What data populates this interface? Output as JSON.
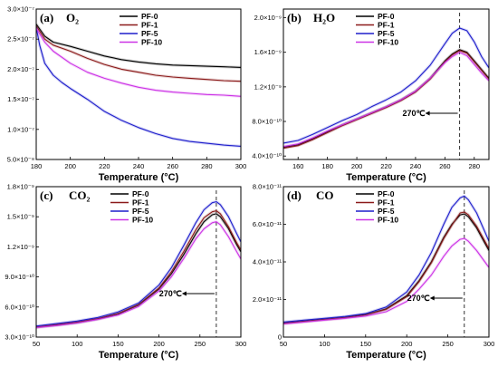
{
  "figure": {
    "colors": {
      "PF-0": "#000000",
      "PF-1": "#8b1a1a",
      "PF-5": "#1f1fcc",
      "PF-10": "#cc33e6"
    }
  },
  "chart_data": [
    {
      "type": "line",
      "panel_label": "(a)",
      "title": "O₂",
      "xlabel": "Temperature (°C)",
      "ylabel": "",
      "xlim": [
        180,
        300
      ],
      "ylim": [
        5e-08,
        3e-07
      ],
      "xticks": [
        180,
        200,
        220,
        240,
        260,
        280,
        300
      ],
      "yticks": [
        5e-08,
        1e-07,
        1.5e-07,
        2e-07,
        2.5e-07,
        3e-07
      ],
      "ytick_labels": [
        "5.0×10⁻⁸",
        "1.0×10⁻⁷",
        "1.5×10⁻⁷",
        "2.0×10⁻⁷",
        "2.5×10⁻⁷",
        "3.0×10⁻⁷"
      ],
      "legend": "top-right",
      "series": [
        {
          "name": "PF-0",
          "x": [
            180,
            185,
            190,
            200,
            210,
            220,
            230,
            240,
            250,
            260,
            270,
            280,
            290,
            300
          ],
          "y": [
            2.75e-07,
            2.55e-07,
            2.45e-07,
            2.38e-07,
            2.3e-07,
            2.22e-07,
            2.16e-07,
            2.12e-07,
            2.09e-07,
            2.07e-07,
            2.06e-07,
            2.05e-07,
            2.04e-07,
            2.03e-07
          ]
        },
        {
          "name": "PF-1",
          "x": [
            180,
            185,
            190,
            200,
            210,
            220,
            230,
            240,
            250,
            260,
            270,
            280,
            290,
            300
          ],
          "y": [
            2.72e-07,
            2.5e-07,
            2.4e-07,
            2.3e-07,
            2.18e-07,
            2.08e-07,
            2e-07,
            1.95e-07,
            1.9e-07,
            1.87e-07,
            1.85e-07,
            1.83e-07,
            1.81e-07,
            1.8e-07
          ]
        },
        {
          "name": "PF-5",
          "x": [
            180,
            182,
            185,
            190,
            195,
            200,
            210,
            220,
            230,
            240,
            250,
            260,
            270,
            280,
            290,
            300
          ],
          "y": [
            2.7e-07,
            2.4e-07,
            2.1e-07,
            1.9e-07,
            1.78e-07,
            1.68e-07,
            1.5e-07,
            1.3e-07,
            1.15e-07,
            1.03e-07,
            9.3e-08,
            8.5e-08,
            8e-08,
            7.7e-08,
            7.4e-08,
            7.2e-08
          ]
        },
        {
          "name": "PF-10",
          "x": [
            180,
            185,
            190,
            200,
            210,
            220,
            230,
            240,
            250,
            260,
            270,
            280,
            290,
            300
          ],
          "y": [
            2.68e-07,
            2.45e-07,
            2.3e-07,
            2.1e-07,
            1.95e-07,
            1.85e-07,
            1.77e-07,
            1.7e-07,
            1.65e-07,
            1.62e-07,
            1.6e-07,
            1.58e-07,
            1.57e-07,
            1.55e-07
          ]
        }
      ]
    },
    {
      "type": "line",
      "panel_label": "(b)",
      "title": "H₂O",
      "xlabel": "Temperature (°C)",
      "ylabel": "",
      "xlim": [
        150,
        290
      ],
      "ylim": [
        3.6e-10,
        2.1e-09
      ],
      "xticks": [
        160,
        180,
        200,
        220,
        240,
        260,
        280
      ],
      "yticks": [
        4e-10,
        8e-10,
        1.2e-09,
        1.6e-09,
        2e-09
      ],
      "ytick_labels": [
        "4.0×10⁻¹⁰",
        "8.0×10⁻¹⁰",
        "1.2×10⁻⁹",
        "1.6×10⁻⁹",
        "2.0×10⁻⁹"
      ],
      "legend": "top-left",
      "annotation": {
        "text": "270℃",
        "x": 270
      },
      "series": [
        {
          "name": "PF-0",
          "x": [
            150,
            160,
            170,
            180,
            190,
            200,
            210,
            220,
            230,
            240,
            250,
            260,
            265,
            270,
            275,
            280,
            285,
            290
          ],
          "y": [
            5e-10,
            5.3e-10,
            6e-10,
            6.8e-10,
            7.6e-10,
            8.3e-10,
            9e-10,
            9.7e-10,
            1.05e-09,
            1.15e-09,
            1.3e-09,
            1.5e-09,
            1.58e-09,
            1.63e-09,
            1.6e-09,
            1.5e-09,
            1.4e-09,
            1.3e-09
          ]
        },
        {
          "name": "PF-1",
          "x": [
            150,
            160,
            170,
            180,
            190,
            200,
            210,
            220,
            230,
            240,
            250,
            260,
            265,
            270,
            275,
            280,
            285,
            290
          ],
          "y": [
            4.9e-10,
            5.2e-10,
            5.9e-10,
            6.7e-10,
            7.5e-10,
            8.2e-10,
            8.9e-10,
            9.6e-10,
            1.04e-09,
            1.14e-09,
            1.29e-09,
            1.49e-09,
            1.57e-09,
            1.62e-09,
            1.59e-09,
            1.49e-09,
            1.39e-09,
            1.29e-09
          ]
        },
        {
          "name": "PF-5",
          "x": [
            150,
            160,
            170,
            180,
            190,
            200,
            210,
            220,
            230,
            240,
            250,
            260,
            265,
            270,
            275,
            280,
            285,
            290
          ],
          "y": [
            5.5e-10,
            5.8e-10,
            6.5e-10,
            7.3e-10,
            8.1e-10,
            8.8e-10,
            9.7e-10,
            1.05e-09,
            1.14e-09,
            1.27e-09,
            1.45e-09,
            1.7e-09,
            1.82e-09,
            1.88e-09,
            1.85e-09,
            1.72e-09,
            1.55e-09,
            1.42e-09
          ]
        },
        {
          "name": "PF-10",
          "x": [
            150,
            160,
            170,
            180,
            190,
            200,
            210,
            220,
            230,
            240,
            250,
            260,
            265,
            270,
            275,
            280,
            285,
            290
          ],
          "y": [
            5.1e-10,
            5.4e-10,
            6.1e-10,
            6.9e-10,
            7.6e-10,
            8.3e-10,
            9e-10,
            9.7e-10,
            1.05e-09,
            1.15e-09,
            1.3e-09,
            1.48e-09,
            1.55e-09,
            1.6e-09,
            1.56e-09,
            1.46e-09,
            1.36e-09,
            1.27e-09
          ]
        }
      ]
    },
    {
      "type": "line",
      "panel_label": "(c)",
      "title": "CO₂",
      "xlabel": "Temperature (°C)",
      "ylabel": "",
      "xlim": [
        50,
        300
      ],
      "ylim": [
        3e-10,
        1.8e-09
      ],
      "xticks": [
        50,
        100,
        150,
        200,
        250,
        300
      ],
      "yticks": [
        3e-10,
        6e-10,
        9e-10,
        1.2e-09,
        1.5e-09,
        1.8e-09
      ],
      "ytick_labels": [
        "3.0×10⁻¹⁰",
        "6.0×10⁻¹⁰",
        "9.0×10⁻¹⁰",
        "1.2×10⁻⁹",
        "1.5×10⁻⁹",
        "1.8×10⁻⁹"
      ],
      "legend": "top-left",
      "annotation": {
        "text": "270℃",
        "x": 270
      },
      "series": [
        {
          "name": "PF-0",
          "x": [
            50,
            75,
            100,
            125,
            150,
            175,
            200,
            215,
            230,
            245,
            255,
            265,
            270,
            275,
            285,
            295,
            300
          ],
          "y": [
            4e-10,
            4.2e-10,
            4.45e-10,
            4.8e-10,
            5.3e-10,
            6.2e-10,
            7.8e-10,
            9.3e-10,
            1.12e-09,
            1.33e-09,
            1.45e-09,
            1.52e-09,
            1.53e-09,
            1.5e-09,
            1.38e-09,
            1.22e-09,
            1.15e-09
          ]
        },
        {
          "name": "PF-1",
          "x": [
            50,
            75,
            100,
            125,
            150,
            175,
            200,
            215,
            230,
            245,
            255,
            265,
            270,
            275,
            285,
            295,
            300
          ],
          "y": [
            4e-10,
            4.25e-10,
            4.5e-10,
            4.85e-10,
            5.35e-10,
            6.25e-10,
            7.9e-10,
            9.5e-10,
            1.15e-09,
            1.37e-09,
            1.49e-09,
            1.55e-09,
            1.56e-09,
            1.53e-09,
            1.4e-09,
            1.24e-09,
            1.17e-09
          ]
        },
        {
          "name": "PF-5",
          "x": [
            50,
            75,
            100,
            125,
            150,
            175,
            200,
            215,
            230,
            245,
            255,
            265,
            270,
            275,
            285,
            295,
            300
          ],
          "y": [
            4.1e-10,
            4.35e-10,
            4.6e-10,
            4.95e-10,
            5.5e-10,
            6.4e-10,
            8.2e-10,
            9.9e-10,
            1.21e-09,
            1.44e-09,
            1.57e-09,
            1.64e-09,
            1.65e-09,
            1.62e-09,
            1.5e-09,
            1.33e-09,
            1.25e-09
          ]
        },
        {
          "name": "PF-10",
          "x": [
            50,
            75,
            100,
            125,
            150,
            175,
            200,
            215,
            230,
            245,
            255,
            265,
            270,
            275,
            285,
            295,
            300
          ],
          "y": [
            3.95e-10,
            4.15e-10,
            4.4e-10,
            4.75e-10,
            5.2e-10,
            6.05e-10,
            7.6e-10,
            9e-10,
            1.08e-09,
            1.28e-09,
            1.38e-09,
            1.44e-09,
            1.45e-09,
            1.42e-09,
            1.3e-09,
            1.15e-09,
            1.08e-09
          ]
        }
      ]
    },
    {
      "type": "line",
      "panel_label": "(d)",
      "title": "CO",
      "xlabel": "Temperature (°C)",
      "ylabel": "",
      "xlim": [
        50,
        300
      ],
      "ylim": [
        0,
        8e-11
      ],
      "xticks": [
        50,
        100,
        150,
        200,
        250,
        300
      ],
      "yticks": [
        0,
        2e-11,
        4e-11,
        6e-11,
        8e-11
      ],
      "ytick_labels": [
        "0",
        "2.0×10⁻¹¹",
        "4.0×10⁻¹¹",
        "6.0×10⁻¹¹",
        "8.0×10⁻¹¹"
      ],
      "legend": "top-left",
      "annotation": {
        "text": "270℃",
        "x": 270
      },
      "series": [
        {
          "name": "PF-0",
          "x": [
            50,
            75,
            100,
            125,
            150,
            175,
            200,
            215,
            230,
            245,
            255,
            265,
            270,
            275,
            285,
            295,
            300
          ],
          "y": [
            7.5e-12,
            8.5e-12,
            9.5e-12,
            1.05e-11,
            1.2e-11,
            1.5e-11,
            2.2e-11,
            3e-11,
            4e-11,
            5.3e-11,
            6e-11,
            6.5e-11,
            6.55e-11,
            6.4e-11,
            5.8e-11,
            5e-11,
            4.6e-11
          ]
        },
        {
          "name": "PF-1",
          "x": [
            50,
            75,
            100,
            125,
            150,
            175,
            200,
            215,
            230,
            245,
            255,
            265,
            270,
            275,
            285,
            295,
            300
          ],
          "y": [
            7.3e-12,
            8.3e-12,
            9.3e-12,
            1.03e-11,
            1.18e-11,
            1.48e-11,
            2.15e-11,
            2.95e-11,
            3.95e-11,
            5.25e-11,
            5.95e-11,
            6.6e-11,
            6.65e-11,
            6.5e-11,
            5.9e-11,
            5.1e-11,
            4.7e-11
          ]
        },
        {
          "name": "PF-5",
          "x": [
            50,
            75,
            100,
            125,
            150,
            175,
            200,
            215,
            230,
            245,
            255,
            265,
            270,
            275,
            285,
            295,
            300
          ],
          "y": [
            8e-12,
            9e-12,
            1e-11,
            1.1e-11,
            1.25e-11,
            1.6e-11,
            2.4e-11,
            3.3e-11,
            4.5e-11,
            6e-11,
            6.9e-11,
            7.4e-11,
            7.5e-11,
            7.3e-11,
            6.6e-11,
            5.6e-11,
            5.1e-11
          ]
        },
        {
          "name": "PF-10",
          "x": [
            50,
            75,
            100,
            125,
            150,
            175,
            200,
            215,
            230,
            245,
            255,
            265,
            270,
            275,
            285,
            295,
            300
          ],
          "y": [
            7e-12,
            8e-12,
            9e-12,
            1e-11,
            1.12e-11,
            1.35e-11,
            1.9e-11,
            2.55e-11,
            3.3e-11,
            4.3e-11,
            4.85e-11,
            5.2e-11,
            5.25e-11,
            5.1e-11,
            4.6e-11,
            4e-11,
            3.7e-11
          ]
        }
      ]
    }
  ]
}
